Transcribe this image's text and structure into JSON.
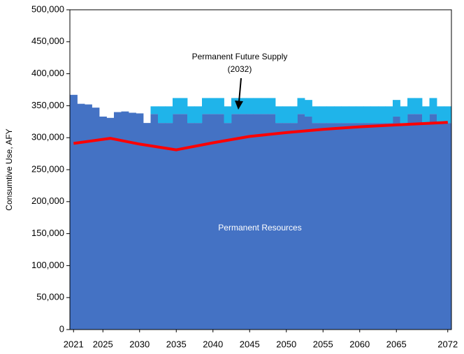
{
  "chart_data": {
    "type": "stacked-step",
    "ylabel": "Consumtive Use, AFY",
    "x": [
      2021,
      2022,
      2023,
      2024,
      2025,
      2026,
      2027,
      2028,
      2029,
      2030,
      2031,
      2032,
      2033,
      2034,
      2035,
      2036,
      2037,
      2038,
      2039,
      2040,
      2041,
      2042,
      2043,
      2044,
      2045,
      2046,
      2047,
      2048,
      2049,
      2050,
      2051,
      2052,
      2053,
      2054,
      2055,
      2056,
      2057,
      2058,
      2059,
      2060,
      2061,
      2062,
      2063,
      2064,
      2065,
      2066,
      2067,
      2068,
      2069,
      2070,
      2071,
      2072
    ],
    "series": [
      {
        "color": "#4472c4",
        "values": [
          367000,
          353000,
          352000,
          347000,
          333000,
          331000,
          340000,
          341000,
          339000,
          338000,
          323000,
          337000,
          323000,
          323000,
          337000,
          337000,
          323000,
          323000,
          337000,
          337000,
          337000,
          323000,
          337000,
          337000,
          337000,
          337000,
          337000,
          337000,
          323000,
          323000,
          323000,
          337000,
          333000,
          323000,
          323000,
          323000,
          323000,
          323000,
          323000,
          323000,
          323000,
          323000,
          323000,
          323000,
          333000,
          323000,
          337000,
          337000,
          323000,
          337000,
          323000,
          323000
        ]
      },
      {
        "color": "#1fb4ea",
        "values": [
          0,
          0,
          0,
          0,
          0,
          0,
          0,
          0,
          0,
          0,
          0,
          12000,
          26000,
          26000,
          25000,
          25000,
          26000,
          26000,
          25000,
          25000,
          25000,
          26000,
          25000,
          25000,
          25000,
          25000,
          25000,
          25000,
          26000,
          26000,
          26000,
          25000,
          26000,
          26000,
          26000,
          26000,
          26000,
          26000,
          26000,
          26000,
          26000,
          26000,
          26000,
          26000,
          26000,
          26000,
          25000,
          25000,
          26000,
          25000,
          26000,
          26000
        ]
      }
    ],
    "line": {
      "color": "#ff0000",
      "x": [
        2021,
        2026,
        2030,
        2035,
        2040,
        2045,
        2050,
        2055,
        2060,
        2065,
        2072
      ],
      "values": [
        291000,
        299000,
        290000,
        281000,
        292000,
        302000,
        308000,
        313000,
        317000,
        320000,
        324000
      ]
    },
    "xlim": [
      2020.5,
      2072.5
    ],
    "xticks": [
      2021,
      2025,
      2030,
      2035,
      2040,
      2045,
      2050,
      2055,
      2060,
      2065,
      2072
    ],
    "ylim": [
      0,
      500000
    ],
    "yticks": [
      0,
      {
        "value": 50000,
        "label": "50,000"
      },
      {
        "value": 100000,
        "label": "100,000"
      },
      {
        "value": 150000,
        "label": "150,000"
      },
      {
        "value": 200000,
        "label": "200,000"
      },
      {
        "value": 250000,
        "label": "250,000"
      },
      {
        "value": 300000,
        "label": "300,000"
      },
      {
        "value": 350000,
        "label": "350,000"
      },
      {
        "value": 400000,
        "label": "400,000"
      },
      {
        "value": 450000,
        "label": "450,000"
      },
      {
        "value": 500000,
        "label": "500,000"
      }
    ],
    "annotations": [
      "Permanent Future Supply",
      "(2032)",
      "Permanent Resources"
    ]
  }
}
